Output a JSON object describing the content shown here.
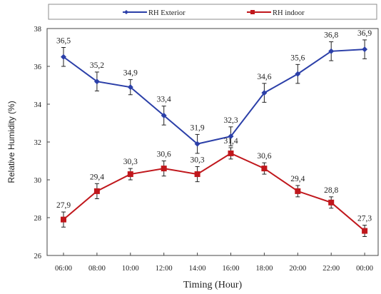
{
  "chart_data": {
    "type": "line",
    "xlabel": "Timing (Hour)",
    "ylabel": "Relative Humidity (%)",
    "ylim": [
      26,
      38
    ],
    "yticks": [
      26,
      28,
      30,
      32,
      34,
      36,
      38
    ],
    "categories": [
      "06:00",
      "08:00",
      "10:00",
      "12:00",
      "14:00",
      "16:00",
      "18:00",
      "20:00",
      "22:00",
      "00:00"
    ],
    "legend_position": "top",
    "grid": false,
    "series": [
      {
        "name": "RH Exterior",
        "color": "#2b3fa8",
        "marker": "diamond",
        "values": [
          36.5,
          35.2,
          34.9,
          33.4,
          31.9,
          32.3,
          34.6,
          35.6,
          36.8,
          36.9
        ],
        "labels": [
          "36,5",
          "35,2",
          "34,9",
          "33,4",
          "31,9",
          "32,3",
          "34,6",
          "35,6",
          "36,8",
          "36,9"
        ],
        "errors": [
          0.5,
          0.5,
          0.4,
          0.5,
          0.5,
          0.5,
          0.5,
          0.5,
          0.5,
          0.5
        ]
      },
      {
        "name": "RH indoor",
        "color": "#c0171c",
        "marker": "square",
        "values": [
          27.9,
          29.4,
          30.3,
          30.6,
          30.3,
          31.4,
          30.6,
          29.4,
          28.8,
          27.3
        ],
        "labels": [
          "27,9",
          "29,4",
          "30,3",
          "30,6",
          "30,3",
          "31,4",
          "30,6",
          "29,4",
          "28,8",
          "27,3"
        ],
        "errors": [
          0.4,
          0.4,
          0.3,
          0.4,
          0.4,
          0.3,
          0.3,
          0.3,
          0.3,
          0.3
        ]
      }
    ]
  }
}
